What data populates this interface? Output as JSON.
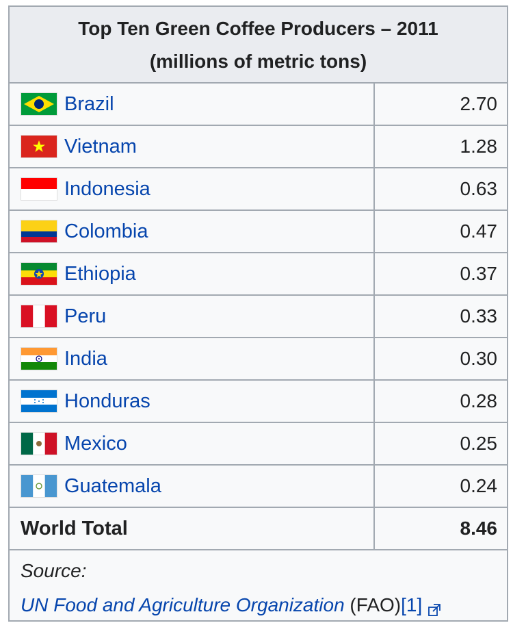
{
  "table": {
    "title_line1": "Top Ten Green Coffee Producers – 2011",
    "title_line2": "(millions of metric tons)",
    "rows": [
      {
        "country": "Brazil",
        "value": "2.70",
        "flag": "brazil-flag-icon"
      },
      {
        "country": "Vietnam",
        "value": "1.28",
        "flag": "vietnam-flag-icon"
      },
      {
        "country": "Indonesia",
        "value": "0.63",
        "flag": "indonesia-flag-icon"
      },
      {
        "country": "Colombia",
        "value": "0.47",
        "flag": "colombia-flag-icon"
      },
      {
        "country": "Ethiopia",
        "value": "0.37",
        "flag": "ethiopia-flag-icon"
      },
      {
        "country": "Peru",
        "value": "0.33",
        "flag": "peru-flag-icon"
      },
      {
        "country": "India",
        "value": "0.30",
        "flag": "india-flag-icon"
      },
      {
        "country": "Honduras",
        "value": "0.28",
        "flag": "honduras-flag-icon"
      },
      {
        "country": "Mexico",
        "value": "0.25",
        "flag": "mexico-flag-icon"
      },
      {
        "country": "Guatemala",
        "value": "0.24",
        "flag": "guatemala-flag-icon"
      }
    ],
    "total_label": "World Total",
    "total_value": "8.46",
    "source_label": "Source:",
    "source_link": "UN Food and Agriculture Organization",
    "source_abbr": " (FAO)",
    "citation": "[1]"
  },
  "colors": {
    "link": "#0645ad",
    "border": "#a2a9b1",
    "header_bg": "#eaecf0",
    "cell_bg": "#f8f9fa"
  }
}
